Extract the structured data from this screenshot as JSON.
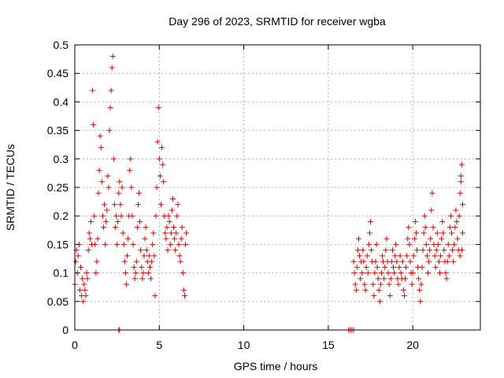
{
  "chart_data": {
    "type": "scatter",
    "title": "Day 296 of 2023, SRMTID for receiver wgba",
    "xlabel": "GPS time / hours",
    "ylabel": "SRMTID / TECUs",
    "xlim": [
      0,
      24
    ],
    "ylim": [
      0,
      0.5
    ],
    "xticks": [
      0,
      5,
      10,
      15,
      20
    ],
    "yticks": [
      0,
      0.05,
      0.1,
      0.15,
      0.2,
      0.25,
      0.3,
      0.35,
      0.4,
      0.45,
      0.5
    ],
    "xtick_labels": [
      "0",
      "5",
      "10",
      "15",
      "20"
    ],
    "ytick_labels": [
      "0",
      "0.05",
      "0.1",
      "0.15",
      "0.2",
      "0.25",
      "0.3",
      "0.35",
      "0.4",
      "0.45",
      "0.5"
    ],
    "grid": true,
    "marker": "+",
    "color": "#e00000",
    "series": [
      {
        "name": "SRMTID",
        "points": [
          [
            0.0,
            0.08
          ],
          [
            0.05,
            0.12
          ],
          [
            0.1,
            0.14
          ],
          [
            0.15,
            0.1
          ],
          [
            0.2,
            0.13
          ],
          [
            0.25,
            0.15
          ],
          [
            0.3,
            0.07
          ],
          [
            0.35,
            0.11
          ],
          [
            0.4,
            0.06
          ],
          [
            0.45,
            0.09
          ],
          [
            0.5,
            0.05
          ],
          [
            0.55,
            0.08
          ],
          [
            0.6,
            0.07
          ],
          [
            0.65,
            0.06
          ],
          [
            0.7,
            0.1
          ],
          [
            0.75,
            0.09
          ],
          [
            0.8,
            0.14
          ],
          [
            0.85,
            0.17
          ],
          [
            0.9,
            0.16
          ],
          [
            0.95,
            0.19
          ],
          [
            1.0,
            0.15
          ],
          [
            1.05,
            0.42
          ],
          [
            1.1,
            0.36
          ],
          [
            1.15,
            0.2
          ],
          [
            1.2,
            0.15
          ],
          [
            1.25,
            0.1
          ],
          [
            1.3,
            0.12
          ],
          [
            1.35,
            0.16
          ],
          [
            1.4,
            0.24
          ],
          [
            1.45,
            0.28
          ],
          [
            1.5,
            0.34
          ],
          [
            1.55,
            0.32
          ],
          [
            1.6,
            0.26
          ],
          [
            1.65,
            0.2
          ],
          [
            1.7,
            0.18
          ],
          [
            1.75,
            0.22
          ],
          [
            1.8,
            0.15
          ],
          [
            1.85,
            0.19
          ],
          [
            1.9,
            0.21
          ],
          [
            1.95,
            0.27
          ],
          [
            2.0,
            0.25
          ],
          [
            2.05,
            0.35
          ],
          [
            2.1,
            0.39
          ],
          [
            2.15,
            0.42
          ],
          [
            2.2,
            0.46
          ],
          [
            2.25,
            0.48
          ],
          [
            2.3,
            0.3
          ],
          [
            2.35,
            0.22
          ],
          [
            2.4,
            0.18
          ],
          [
            2.45,
            0.2
          ],
          [
            2.5,
            0.15
          ],
          [
            2.55,
            0.19
          ],
          [
            2.6,
            0.24
          ],
          [
            2.65,
            0.26
          ],
          [
            2.7,
            0.22
          ],
          [
            2.75,
            0.2
          ],
          [
            2.8,
            0.25
          ],
          [
            2.85,
            0.17
          ],
          [
            2.9,
            0.15
          ],
          [
            2.95,
            0.12
          ],
          [
            3.0,
            0.1
          ],
          [
            3.05,
            0.08
          ],
          [
            3.1,
            0.13
          ],
          [
            3.15,
            0.16
          ],
          [
            3.2,
            0.2
          ],
          [
            3.25,
            0.28
          ],
          [
            3.3,
            0.3
          ],
          [
            3.35,
            0.25
          ],
          [
            3.4,
            0.2
          ],
          [
            3.45,
            0.15
          ],
          [
            3.5,
            0.11
          ],
          [
            3.55,
            0.09
          ],
          [
            3.6,
            0.1
          ],
          [
            3.65,
            0.12
          ],
          [
            3.7,
            0.18
          ],
          [
            3.75,
            0.22
          ],
          [
            3.8,
            0.24
          ],
          [
            3.85,
            0.19
          ],
          [
            3.9,
            0.14
          ],
          [
            3.95,
            0.11
          ],
          [
            4.0,
            0.09
          ],
          [
            4.05,
            0.1
          ],
          [
            4.1,
            0.13
          ],
          [
            4.15,
            0.16
          ],
          [
            4.2,
            0.18
          ],
          [
            4.25,
            0.14
          ],
          [
            4.3,
            0.12
          ],
          [
            4.35,
            0.1
          ],
          [
            4.4,
            0.13
          ],
          [
            4.45,
            0.11
          ],
          [
            4.5,
            0.09
          ],
          [
            4.55,
            0.12
          ],
          [
            4.6,
            0.15
          ],
          [
            4.65,
            0.17
          ],
          [
            4.7,
            0.13
          ],
          [
            4.75,
            0.06
          ],
          [
            4.8,
            0.2
          ],
          [
            4.85,
            0.25
          ],
          [
            4.9,
            0.33
          ],
          [
            4.95,
            0.39
          ],
          [
            5.0,
            0.3
          ],
          [
            5.05,
            0.27
          ],
          [
            5.1,
            0.22
          ],
          [
            5.15,
            0.32
          ],
          [
            5.2,
            0.29
          ],
          [
            5.25,
            0.26
          ],
          [
            5.3,
            0.2
          ],
          [
            5.35,
            0.17
          ],
          [
            5.4,
            0.16
          ],
          [
            5.45,
            0.18
          ],
          [
            5.5,
            0.14
          ],
          [
            5.55,
            0.2
          ],
          [
            5.6,
            0.19
          ],
          [
            5.65,
            0.15
          ],
          [
            5.7,
            0.17
          ],
          [
            5.75,
            0.21
          ],
          [
            5.8,
            0.23
          ],
          [
            5.85,
            0.18
          ],
          [
            5.9,
            0.16
          ],
          [
            5.95,
            0.14
          ],
          [
            6.0,
            0.17
          ],
          [
            6.05,
            0.2
          ],
          [
            6.1,
            0.22
          ],
          [
            6.15,
            0.15
          ],
          [
            6.2,
            0.13
          ],
          [
            6.25,
            0.12
          ],
          [
            6.3,
            0.16
          ],
          [
            6.35,
            0.18
          ],
          [
            6.4,
            0.1
          ],
          [
            6.45,
            0.07
          ],
          [
            6.5,
            0.06
          ],
          [
            6.55,
            0.15
          ],
          [
            6.6,
            0.17
          ],
          [
            2.6,
            0.0
          ],
          [
            2.65,
            0.0
          ],
          [
            16.2,
            0.0
          ],
          [
            16.3,
            0.0
          ],
          [
            16.4,
            0.0
          ],
          [
            16.5,
            0.0
          ],
          [
            16.5,
            0.12
          ],
          [
            16.55,
            0.1
          ],
          [
            16.6,
            0.08
          ],
          [
            16.65,
            0.07
          ],
          [
            16.7,
            0.11
          ],
          [
            16.75,
            0.14
          ],
          [
            16.8,
            0.16
          ],
          [
            16.85,
            0.13
          ],
          [
            16.9,
            0.09
          ],
          [
            16.95,
            0.12
          ],
          [
            17.0,
            0.1
          ],
          [
            17.05,
            0.14
          ],
          [
            17.1,
            0.12
          ],
          [
            17.15,
            0.08
          ],
          [
            17.2,
            0.07
          ],
          [
            17.25,
            0.11
          ],
          [
            17.3,
            0.13
          ],
          [
            17.35,
            0.1
          ],
          [
            17.4,
            0.15
          ],
          [
            17.45,
            0.17
          ],
          [
            17.5,
            0.19
          ],
          [
            17.55,
            0.14
          ],
          [
            17.6,
            0.12
          ],
          [
            17.65,
            0.08
          ],
          [
            17.7,
            0.06
          ],
          [
            17.75,
            0.1
          ],
          [
            17.8,
            0.12
          ],
          [
            17.85,
            0.15
          ],
          [
            17.9,
            0.11
          ],
          [
            17.95,
            0.09
          ],
          [
            18.0,
            0.07
          ],
          [
            18.05,
            0.05
          ],
          [
            18.1,
            0.08
          ],
          [
            18.15,
            0.1
          ],
          [
            18.2,
            0.13
          ],
          [
            18.25,
            0.12
          ],
          [
            18.3,
            0.09
          ],
          [
            18.35,
            0.11
          ],
          [
            18.4,
            0.14
          ],
          [
            18.45,
            0.16
          ],
          [
            18.5,
            0.12
          ],
          [
            18.55,
            0.1
          ],
          [
            18.6,
            0.08
          ],
          [
            18.65,
            0.06
          ],
          [
            18.7,
            0.09
          ],
          [
            18.75,
            0.12
          ],
          [
            18.8,
            0.14
          ],
          [
            18.85,
            0.11
          ],
          [
            18.9,
            0.1
          ],
          [
            18.95,
            0.13
          ],
          [
            19.0,
            0.15
          ],
          [
            19.05,
            0.12
          ],
          [
            19.1,
            0.09
          ],
          [
            19.15,
            0.08
          ],
          [
            19.2,
            0.11
          ],
          [
            19.25,
            0.13
          ],
          [
            19.3,
            0.1
          ],
          [
            19.35,
            0.09
          ],
          [
            19.4,
            0.12
          ],
          [
            19.45,
            0.07
          ],
          [
            19.5,
            0.06
          ],
          [
            19.55,
            0.09
          ],
          [
            19.6,
            0.11
          ],
          [
            19.65,
            0.13
          ],
          [
            19.7,
            0.16
          ],
          [
            19.75,
            0.18
          ],
          [
            19.8,
            0.15
          ],
          [
            19.85,
            0.12
          ],
          [
            19.9,
            0.1
          ],
          [
            19.95,
            0.08
          ],
          [
            20.0,
            0.1
          ],
          [
            20.05,
            0.13
          ],
          [
            20.1,
            0.16
          ],
          [
            20.15,
            0.19
          ],
          [
            20.2,
            0.17
          ],
          [
            20.25,
            0.14
          ],
          [
            20.3,
            0.11
          ],
          [
            20.35,
            0.09
          ],
          [
            20.4,
            0.07
          ],
          [
            20.45,
            0.05
          ],
          [
            20.5,
            0.08
          ],
          [
            20.55,
            0.11
          ],
          [
            20.6,
            0.14
          ],
          [
            20.65,
            0.17
          ],
          [
            20.7,
            0.2
          ],
          [
            20.75,
            0.18
          ],
          [
            20.8,
            0.15
          ],
          [
            20.85,
            0.13
          ],
          [
            20.9,
            0.1
          ],
          [
            20.95,
            0.12
          ],
          [
            21.0,
            0.14
          ],
          [
            21.05,
            0.16
          ],
          [
            21.1,
            0.21
          ],
          [
            21.15,
            0.24
          ],
          [
            21.2,
            0.18
          ],
          [
            21.25,
            0.15
          ],
          [
            21.3,
            0.13
          ],
          [
            21.35,
            0.11
          ],
          [
            21.4,
            0.14
          ],
          [
            21.45,
            0.17
          ],
          [
            21.5,
            0.15
          ],
          [
            21.55,
            0.12
          ],
          [
            21.6,
            0.1
          ],
          [
            21.65,
            0.13
          ],
          [
            21.7,
            0.16
          ],
          [
            21.75,
            0.19
          ],
          [
            21.8,
            0.17
          ],
          [
            21.85,
            0.14
          ],
          [
            21.9,
            0.12
          ],
          [
            21.95,
            0.1
          ],
          [
            22.0,
            0.09
          ],
          [
            22.05,
            0.12
          ],
          [
            22.1,
            0.15
          ],
          [
            22.15,
            0.13
          ],
          [
            22.2,
            0.18
          ],
          [
            22.25,
            0.2
          ],
          [
            22.3,
            0.17
          ],
          [
            22.35,
            0.14
          ],
          [
            22.4,
            0.12
          ],
          [
            22.45,
            0.15
          ],
          [
            22.5,
            0.18
          ],
          [
            22.55,
            0.21
          ],
          [
            22.6,
            0.19
          ],
          [
            22.65,
            0.16
          ],
          [
            22.7,
            0.14
          ],
          [
            22.75,
            0.2
          ],
          [
            22.8,
            0.24
          ],
          [
            22.85,
            0.27
          ],
          [
            22.9,
            0.29
          ],
          [
            22.95,
            0.22
          ],
          [
            22.95,
            0.17
          ],
          [
            22.9,
            0.14
          ],
          [
            22.85,
            0.26
          ],
          [
            22.8,
            0.13
          ]
        ]
      }
    ]
  }
}
